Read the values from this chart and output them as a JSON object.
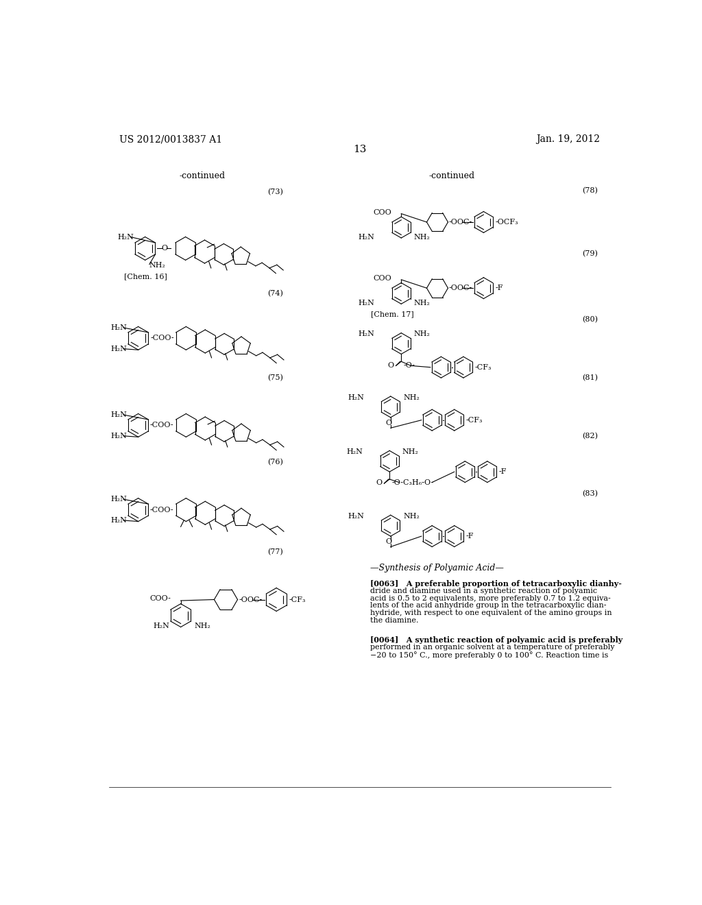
{
  "page_header_left": "US 2012/0013837 A1",
  "page_header_right": "Jan. 19, 2012",
  "page_number": "13",
  "background_color": "#ffffff",
  "text_color": "#000000",
  "continued_left": "-continued",
  "continued_right": "-continued",
  "synthesis_title": "—Synthesis of Polyamic Acid—",
  "para_0063": "[0063]   A preferable proportion of tetracarboxylic dianhy-\ndride and diamine used in a synthetic reaction of polyamic\nacid is 0.5 to 2 equivalents, more preferably 0.7 to 1.2 equiva-\nlents of the acid anhydride group in the tetracarboxylic dian-\nhydride, with respect to one equivalent of the amino groups in\nthe diamine.",
  "para_0064": "[0064]   A synthetic reaction of polyamic acid is preferably\nperformed in an organic solvent at a temperature of preferably\n−20 to 150° C., more preferably 0 to 100° C. Reaction time is"
}
